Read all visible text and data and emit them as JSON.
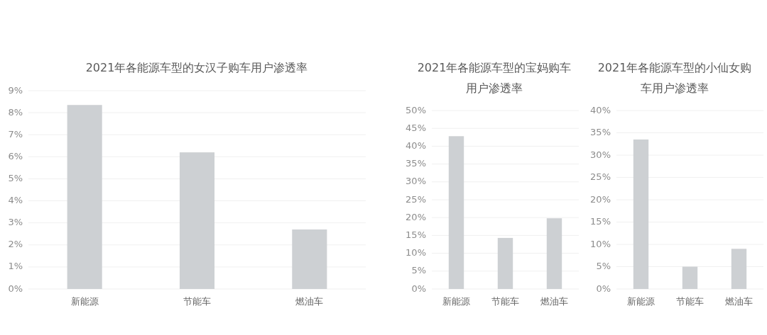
{
  "chart_data": [
    {
      "type": "bar",
      "title": "2021年各能源车型的女汉子购车用户渗透率",
      "categories": [
        "新能源",
        "节能车",
        "燃油车"
      ],
      "values": [
        8.35,
        6.2,
        2.7
      ],
      "color": "#cdd0d3",
      "ylim": [
        0,
        9
      ],
      "yticks": [
        {
          "value": 0,
          "label": "0%"
        },
        {
          "value": 1,
          "label": "1%"
        },
        {
          "value": 2,
          "label": "2%"
        },
        {
          "value": 3,
          "label": "3%"
        },
        {
          "value": 4,
          "label": "4%"
        },
        {
          "value": 5,
          "label": "5%"
        },
        {
          "value": 6,
          "label": "6%"
        },
        {
          "value": 7,
          "label": "7%"
        },
        {
          "value": 8,
          "label": "8%"
        },
        {
          "value": 9,
          "label": "9%"
        }
      ],
      "grid": "y"
    },
    {
      "type": "bar",
      "title": "2021年各能源车型的宝妈购车用户渗透率",
      "categories": [
        "新能源",
        "节能车",
        "燃油车"
      ],
      "values": [
        42.8,
        14.3,
        19.8
      ],
      "color": "#cdd0d3",
      "ylim": [
        0,
        50
      ],
      "yticks": [
        {
          "value": 0,
          "label": "0%"
        },
        {
          "value": 5,
          "label": "5%"
        },
        {
          "value": 10,
          "label": "10%"
        },
        {
          "value": 15,
          "label": "15%"
        },
        {
          "value": 20,
          "label": "20%"
        },
        {
          "value": 25,
          "label": "25%"
        },
        {
          "value": 30,
          "label": "30%"
        },
        {
          "value": 35,
          "label": "35%"
        },
        {
          "value": 40,
          "label": "40%"
        },
        {
          "value": 45,
          "label": "45%"
        },
        {
          "value": 50,
          "label": "50%"
        }
      ],
      "grid": "y"
    },
    {
      "type": "bar",
      "title": "2021年各能源车型的小仙女购车用户渗透率",
      "categories": [
        "新能源",
        "节能车",
        "燃油车"
      ],
      "values": [
        33.5,
        5,
        9
      ],
      "color": "#cdd0d3",
      "ylim": [
        0,
        40
      ],
      "yticks": [
        {
          "value": 0,
          "label": "0%"
        },
        {
          "value": 5,
          "label": "5%"
        },
        {
          "value": 10,
          "label": "10%"
        },
        {
          "value": 15,
          "label": "15%"
        },
        {
          "value": 20,
          "label": "20%"
        },
        {
          "value": 25,
          "label": "25%"
        },
        {
          "value": 30,
          "label": "30%"
        },
        {
          "value": 35,
          "label": "35%"
        },
        {
          "value": 40,
          "label": "40%"
        }
      ],
      "grid": "y"
    }
  ]
}
